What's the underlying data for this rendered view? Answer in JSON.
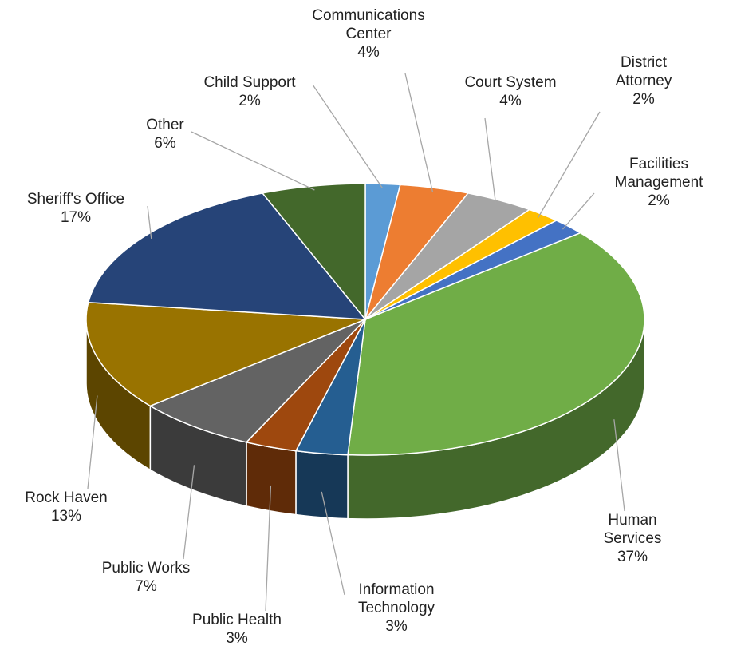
{
  "chart_data": {
    "type": "pie3d",
    "categories": [
      "Child Support",
      "Communications Center",
      "Court System",
      "District Attorney",
      "Facilities Management",
      "Human Services",
      "Information Technology",
      "Public Health",
      "Public Works",
      "Rock Haven",
      "Sheriff's Office",
      "Other"
    ],
    "values": [
      2,
      4,
      4,
      2,
      2,
      37,
      3,
      3,
      7,
      13,
      17,
      6
    ],
    "value_labels": [
      "2%",
      "4%",
      "4%",
      "2%",
      "2%",
      "37%",
      "3%",
      "3%",
      "7%",
      "13%",
      "17%",
      "6%"
    ],
    "colors": [
      "#5b9bd5",
      "#ed7d31",
      "#a5a5a5",
      "#ffc000",
      "#4472c4",
      "#70ad47",
      "#255e91",
      "#9e480e",
      "#636363",
      "#997300",
      "#264478",
      "#43682b"
    ]
  }
}
